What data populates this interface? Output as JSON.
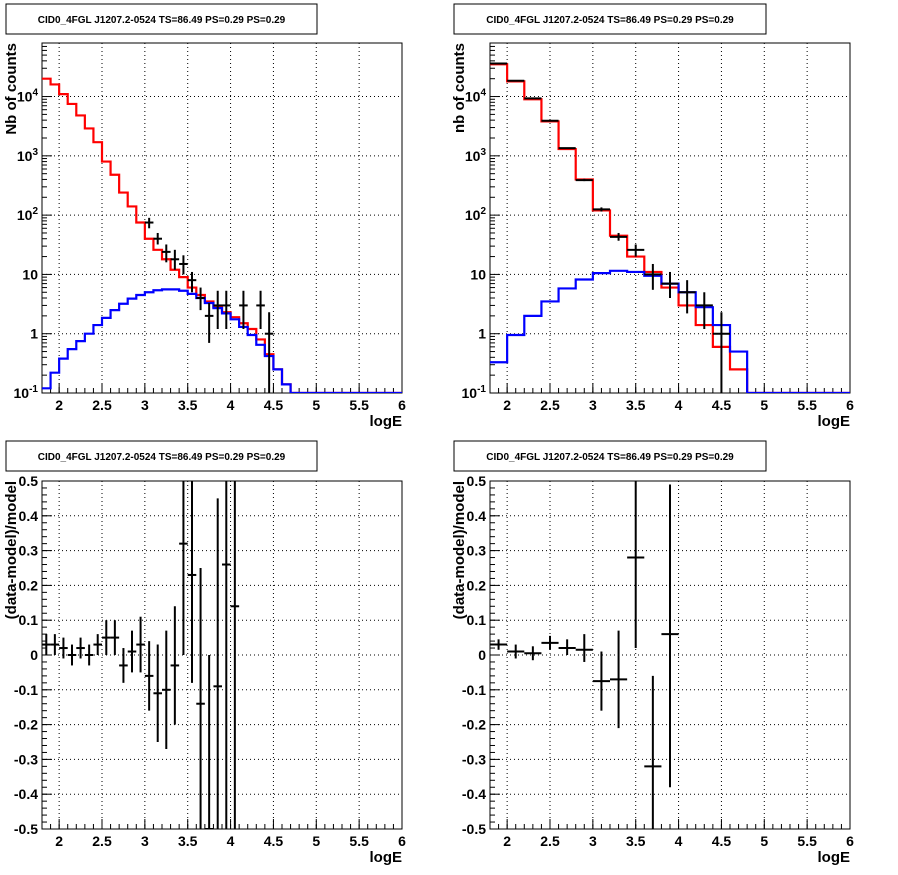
{
  "chart_data": [
    {
      "id": "counts_left",
      "type": "line",
      "title": "CID0_4FGL J1207.2-0524 TS=86.49 PS=0.29 PS=0.29",
      "xlabel": "logE",
      "ylabel": "Nb of counts",
      "xlim": [
        1.8,
        6.0
      ],
      "ylim": [
        0.1,
        80000
      ],
      "log_y": true,
      "grid": true,
      "x_ticks": [
        "2",
        "2.5",
        "3",
        "3.5",
        "4",
        "4.5",
        "5",
        "5.5",
        "6"
      ],
      "y_ticks": [
        "10^-1",
        "1",
        "10",
        "10^2",
        "10^3",
        "10^4"
      ],
      "bin_width": 0.1,
      "series": [
        {
          "color": "#ff0000",
          "kind": "step",
          "x": [
            1.8,
            1.9,
            2.0,
            2.1,
            2.2,
            2.3,
            2.4,
            2.5,
            2.6,
            2.7,
            2.8,
            2.9,
            3.0,
            3.1,
            3.2,
            3.3,
            3.4,
            3.5,
            3.6,
            3.7,
            3.8,
            3.9,
            4.0,
            4.1,
            4.2,
            4.3,
            4.4,
            4.5,
            4.6,
            4.7,
            4.8,
            4.9,
            5.0,
            5.1,
            5.2,
            5.3,
            5.4,
            5.5,
            5.6,
            5.7,
            5.8,
            5.9
          ],
          "y": [
            20000,
            16000,
            11000,
            7500,
            4800,
            2900,
            1700,
            800,
            480,
            240,
            140,
            75,
            40,
            26,
            18,
            12,
            9,
            6,
            4.5,
            3.5,
            2.8,
            2.3,
            1.9,
            1.5,
            1.2,
            0.8,
            0.45,
            0.25,
            0.14,
            0.1,
            0.1,
            0.1,
            0.1,
            0.1,
            0.1,
            0.1,
            0.1,
            0.1,
            0.1,
            0.1,
            0.1,
            0.1
          ]
        },
        {
          "color": "#0000ff",
          "kind": "step",
          "x": [
            1.8,
            1.9,
            2.0,
            2.1,
            2.2,
            2.3,
            2.4,
            2.5,
            2.6,
            2.7,
            2.8,
            2.9,
            3.0,
            3.1,
            3.2,
            3.3,
            3.4,
            3.5,
            3.6,
            3.7,
            3.8,
            3.9,
            4.0,
            4.1,
            4.2,
            4.3,
            4.4,
            4.5,
            4.6,
            4.7,
            4.8,
            4.9,
            5.0,
            5.1,
            5.2,
            5.3,
            5.4,
            5.5,
            5.6,
            5.7,
            5.8,
            5.9
          ],
          "y": [
            0.12,
            0.22,
            0.38,
            0.55,
            0.75,
            1.0,
            1.4,
            1.85,
            2.5,
            3.2,
            3.9,
            4.5,
            5.0,
            5.4,
            5.6,
            5.6,
            5.3,
            4.7,
            4.0,
            3.3,
            2.7,
            2.2,
            1.75,
            1.3,
            0.95,
            0.65,
            0.42,
            0.25,
            0.14,
            0.1,
            0.1,
            0.1,
            0.1,
            0.1,
            0.1,
            0.1,
            0.1,
            0.1,
            0.1,
            0.1,
            0.1,
            0.1
          ]
        },
        {
          "color": "#000000",
          "kind": "points",
          "x": [
            3.05,
            3.15,
            3.25,
            3.35,
            3.45,
            3.55,
            3.65,
            3.75,
            3.85,
            3.95,
            4.15,
            4.35,
            4.45
          ],
          "y": [
            75,
            40,
            24,
            18,
            15,
            8,
            4,
            2,
            3,
            3,
            3,
            3,
            1
          ],
          "err_low": [
            60,
            32,
            16,
            12,
            10,
            5,
            2.5,
            0.7,
            1.2,
            1.2,
            1.2,
            1.2,
            0.1
          ],
          "err_high": [
            90,
            50,
            32,
            26,
            21,
            11,
            6,
            3.3,
            5.3,
            5.3,
            5.3,
            5.3,
            2.3
          ]
        }
      ]
    },
    {
      "id": "counts_right",
      "type": "line",
      "title": "CID0_4FGL J1207.2-0524 TS=86.49 PS=0.29 PS=0.29",
      "xlabel": "logE",
      "ylabel": "nb of counts",
      "xlim": [
        1.8,
        6.0
      ],
      "ylim": [
        0.1,
        80000
      ],
      "log_y": true,
      "grid": true,
      "x_ticks": [
        "2",
        "2.5",
        "3",
        "3.5",
        "4",
        "4.5",
        "5",
        "5.5",
        "6"
      ],
      "y_ticks": [
        "10^-1",
        "1",
        "10",
        "10^2",
        "10^3",
        "10^4"
      ],
      "bin_width": 0.2,
      "series": [
        {
          "color": "#ff0000",
          "kind": "step",
          "x": [
            1.8,
            2.0,
            2.2,
            2.4,
            2.6,
            2.8,
            3.0,
            3.2,
            3.4,
            3.6,
            3.8,
            4.0,
            4.2,
            4.4,
            4.6,
            4.8,
            5.0,
            5.2,
            5.4,
            5.6,
            5.8
          ],
          "y": [
            35000,
            18000,
            9000,
            3800,
            1300,
            400,
            120,
            45,
            20,
            11,
            6,
            3,
            1.4,
            0.6,
            0.25,
            0.1,
            0.1,
            0.1,
            0.1,
            0.1,
            0.1
          ]
        },
        {
          "color": "#0000ff",
          "kind": "step",
          "x": [
            1.8,
            2.0,
            2.2,
            2.4,
            2.6,
            2.8,
            3.0,
            3.2,
            3.4,
            3.6,
            3.8,
            4.0,
            4.2,
            4.4,
            4.6,
            4.8,
            5.0,
            5.2,
            5.4,
            5.6,
            5.8
          ],
          "y": [
            0.33,
            0.95,
            2.0,
            3.5,
            5.8,
            8.2,
            10.5,
            11.5,
            11,
            9.5,
            7,
            5,
            2.8,
            1.4,
            0.5,
            0.1,
            0.1,
            0.1,
            0.1,
            0.1,
            0.1
          ]
        },
        {
          "color": "#000000",
          "kind": "points",
          "x": [
            1.9,
            2.1,
            2.3,
            2.5,
            2.7,
            2.9,
            3.1,
            3.3,
            3.5,
            3.7,
            3.9,
            4.1,
            4.3,
            4.5
          ],
          "y": [
            36000,
            18500,
            9300,
            3900,
            1350,
            390,
            125,
            43,
            26,
            10,
            7,
            5,
            3,
            1
          ],
          "err_low": [
            35500,
            18300,
            9150,
            3850,
            1320,
            375,
            115,
            37,
            20,
            5.5,
            4,
            2.2,
            1.2,
            0.1
          ],
          "err_high": [
            36500,
            18700,
            9450,
            3950,
            1380,
            410,
            135,
            50,
            32,
            15,
            11,
            8,
            5,
            2.3
          ]
        }
      ]
    },
    {
      "id": "resid_left",
      "type": "scatter",
      "title": "CID0_4FGL J1207.2-0524 TS=86.49 PS=0.29 PS=0.29",
      "xlabel": "logE",
      "ylabel": "(data-model)/model",
      "xlim": [
        1.8,
        6.0
      ],
      "ylim": [
        -0.5,
        0.5
      ],
      "grid": true,
      "x_ticks": [
        "2",
        "2.5",
        "3",
        "3.5",
        "4",
        "4.5",
        "5",
        "5.5",
        "6"
      ],
      "y_ticks": [
        "-0.5",
        "-0.4",
        "-0.3",
        "-0.2",
        "-0.1",
        "0",
        "0.1",
        "0.2",
        "0.3",
        "0.4",
        "0.5"
      ],
      "series": [
        {
          "color": "#000000",
          "kind": "points",
          "xerr": 0.05,
          "x": [
            1.85,
            1.95,
            2.05,
            2.15,
            2.25,
            2.35,
            2.45,
            2.55,
            2.65,
            2.75,
            2.85,
            2.95,
            3.05,
            3.15,
            3.25,
            3.35,
            3.45,
            3.55,
            3.65,
            3.75,
            3.85,
            3.95,
            4.05
          ],
          "y": [
            0.03,
            0.03,
            0.02,
            0.0,
            0.02,
            0.0,
            0.03,
            0.05,
            0.05,
            -0.03,
            0.01,
            0.03,
            -0.06,
            -0.11,
            -0.1,
            -0.03,
            0.32,
            0.23,
            -0.14,
            -0.5,
            -0.09,
            0.26,
            0.14
          ],
          "err_low": [
            0.0,
            0.0,
            -0.01,
            -0.03,
            -0.01,
            -0.03,
            0.0,
            0.0,
            0.0,
            -0.08,
            -0.05,
            -0.05,
            -0.16,
            -0.25,
            -0.27,
            -0.2,
            0.0,
            -0.08,
            -0.5,
            -1.0,
            -0.5,
            -0.5,
            -0.5
          ],
          "err_high": [
            0.06,
            0.06,
            0.05,
            0.03,
            0.05,
            0.03,
            0.06,
            0.1,
            0.1,
            0.02,
            0.07,
            0.11,
            0.04,
            0.03,
            0.07,
            0.14,
            0.6,
            0.6,
            0.25,
            0.0,
            0.45,
            0.6,
            0.6
          ]
        }
      ]
    },
    {
      "id": "resid_right",
      "type": "scatter",
      "title": "CID0_4FGL J1207.2-0524 TS=86.49 PS=0.29 PS=0.29",
      "xlabel": "logE",
      "ylabel": "(data-model)/model",
      "xlim": [
        1.8,
        6.0
      ],
      "ylim": [
        -0.5,
        0.5
      ],
      "grid": true,
      "x_ticks": [
        "2",
        "2.5",
        "3",
        "3.5",
        "4",
        "4.5",
        "5",
        "5.5",
        "6"
      ],
      "y_ticks": [
        "-0.5",
        "-0.4",
        "-0.3",
        "-0.2",
        "-0.1",
        "0",
        "0.1",
        "0.2",
        "0.3",
        "0.4",
        "0.5"
      ],
      "series": [
        {
          "color": "#000000",
          "kind": "points",
          "xerr": 0.1,
          "x": [
            1.9,
            2.1,
            2.3,
            2.5,
            2.7,
            2.9,
            3.1,
            3.3,
            3.5,
            3.7,
            3.9
          ],
          "y": [
            0.03,
            0.01,
            0.005,
            0.035,
            0.02,
            0.015,
            -0.075,
            -0.07,
            0.28,
            -0.32,
            0.06
          ],
          "err_low": [
            0.015,
            -0.01,
            -0.015,
            0.015,
            0.0,
            -0.02,
            -0.16,
            -0.21,
            0.02,
            -0.5,
            -0.38
          ],
          "err_high": [
            0.045,
            0.03,
            0.025,
            0.055,
            0.045,
            0.06,
            0.01,
            0.07,
            0.5,
            -0.06,
            0.49
          ]
        }
      ]
    }
  ]
}
